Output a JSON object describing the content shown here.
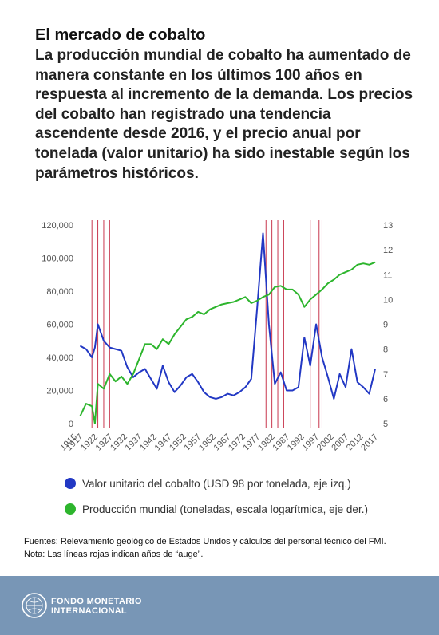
{
  "chart_data": {
    "type": "line",
    "title": "El mercado de cobalto",
    "subtitle": "La producción mundial de cobalto ha aumentado de manera constante en los últimos 100 años en respuesta al incremento de la demanda. Los precios del cobalto han registrado una tendencia ascendente desde 2016, y el precio anual por tonelada (valor unitario) ha sido inestable según los parámetros históricos.",
    "x": [
      1917,
      1919,
      1921,
      1922,
      1923,
      1925,
      1927,
      1929,
      1931,
      1933,
      1935,
      1937,
      1939,
      1941,
      1943,
      1945,
      1947,
      1949,
      1951,
      1953,
      1955,
      1957,
      1959,
      1961,
      1963,
      1965,
      1967,
      1969,
      1971,
      1973,
      1975,
      1977,
      1979,
      1981,
      1983,
      1985,
      1987,
      1989,
      1991,
      1993,
      1995,
      1997,
      1999,
      2001,
      2003,
      2005,
      2007,
      2009,
      2011,
      2013,
      2015,
      2017
    ],
    "series": [
      {
        "name": "Valor unitario del cobalto (USD 98 por tonelada, eje izq.)",
        "color": "#2238c4",
        "axis": "y",
        "values": [
          47000,
          45000,
          40000,
          46000,
          60000,
          50000,
          46000,
          45000,
          44000,
          34000,
          28000,
          31000,
          33000,
          27000,
          21000,
          35000,
          25000,
          19000,
          23000,
          28000,
          30000,
          25000,
          19000,
          16000,
          15000,
          16000,
          18000,
          17000,
          19000,
          22000,
          27000,
          70000,
          115000,
          60000,
          24000,
          31000,
          20000,
          20000,
          22000,
          52000,
          35000,
          60000,
          40000,
          28000,
          15000,
          30000,
          22000,
          45000,
          25000,
          22000,
          18000,
          33000
        ]
      },
      {
        "name": "Producción mundial (toneladas, escala logarítmica, eje der.)",
        "color": "#2db52d",
        "axis": "y2",
        "values": [
          5.3,
          5.8,
          5.7,
          5.0,
          6.6,
          6.4,
          7.0,
          6.7,
          6.9,
          6.6,
          7.0,
          7.6,
          8.2,
          8.2,
          8.0,
          8.4,
          8.2,
          8.6,
          8.9,
          9.2,
          9.3,
          9.5,
          9.4,
          9.6,
          9.7,
          9.8,
          9.85,
          9.9,
          10.0,
          10.1,
          9.85,
          9.95,
          10.1,
          10.2,
          10.5,
          10.55,
          10.4,
          10.4,
          10.2,
          9.7,
          10.0,
          10.2,
          10.4,
          10.65,
          10.8,
          11.0,
          11.1,
          11.2,
          11.4,
          11.45,
          11.4,
          11.5
        ]
      }
    ],
    "boom_years": [
      1921,
      1923,
      1925,
      1927,
      1980,
      1982,
      1984,
      1986,
      1995,
      1998,
      1999
    ],
    "boom_color": "#c8374e",
    "xlim": [
      1915,
      2017
    ],
    "xticks": [
      1915,
      1917,
      1922,
      1927,
      1932,
      1937,
      1942,
      1947,
      1952,
      1957,
      1962,
      1967,
      1972,
      1977,
      1982,
      1987,
      1992,
      1997,
      2002,
      2007,
      2012,
      2017
    ],
    "ylim": [
      0,
      120000
    ],
    "yticks": [
      0,
      {
        "value": 20000,
        "label": "20,000"
      },
      {
        "value": 40000,
        "label": "40,000"
      },
      {
        "value": 60000,
        "label": "60,000"
      },
      {
        "value": 80000,
        "label": "80,000"
      },
      {
        "value": 100000,
        "label": "100,000"
      },
      {
        "value": 120000,
        "label": "120,000"
      }
    ],
    "y2lim": [
      5,
      13
    ],
    "y2ticks": [
      5,
      6,
      7,
      8,
      9,
      10,
      11,
      12,
      13
    ],
    "grid": false
  },
  "notes": {
    "sources": "Fuentes: Relevamiento geológico de Estados Unidos y cálculos del personal técnico del FMI.",
    "note": "Nota: Las líneas rojas indican años de “auge”."
  },
  "footer": {
    "org_line1": "FONDO MONETARIO",
    "org_line2": "INTERNACIONAL"
  }
}
